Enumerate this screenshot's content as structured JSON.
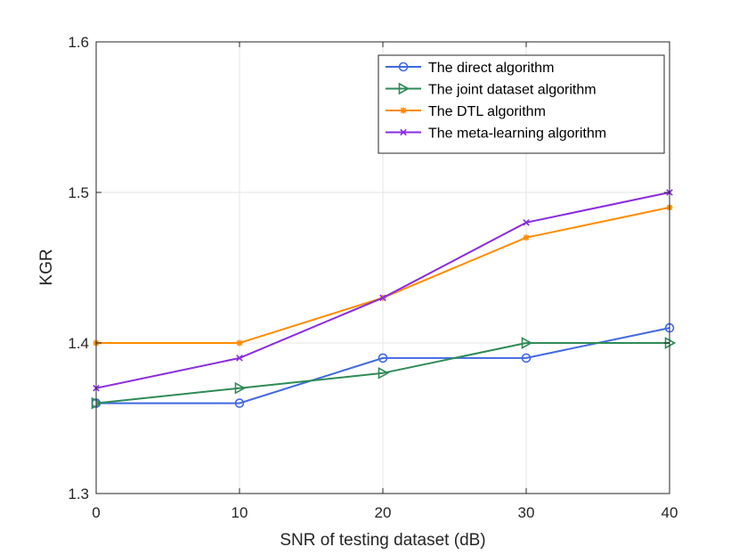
{
  "chart_data": {
    "type": "line",
    "title": "",
    "xlabel": "SNR of testing dataset (dB)",
    "ylabel": "KGR",
    "x": [
      0,
      10,
      20,
      30,
      40
    ],
    "xticks": [
      "0",
      "10",
      "20",
      "30",
      "40"
    ],
    "yticks": [
      "1.3",
      "1.4",
      "1.5",
      "1.6"
    ],
    "xlim": [
      0,
      40
    ],
    "ylim": [
      1.3,
      1.6
    ],
    "grid": true,
    "legend_position": "top-right",
    "series": [
      {
        "name": "The direct algorithm",
        "color": "#4169e1",
        "marker": "circle",
        "values": [
          1.36,
          1.36,
          1.39,
          1.39,
          1.41
        ]
      },
      {
        "name": "The joint dataset algorithm",
        "color": "#2e8b57",
        "marker": "triangle-right",
        "values": [
          1.36,
          1.37,
          1.38,
          1.4,
          1.4
        ]
      },
      {
        "name": "The DTL algorithm",
        "color": "#ff8c00",
        "marker": "asterisk",
        "values": [
          1.4,
          1.4,
          1.43,
          1.47,
          1.49
        ]
      },
      {
        "name": "The meta-learning algorithm",
        "color": "#8a2be2",
        "marker": "x",
        "values": [
          1.37,
          1.39,
          1.43,
          1.48,
          1.5
        ]
      }
    ]
  }
}
